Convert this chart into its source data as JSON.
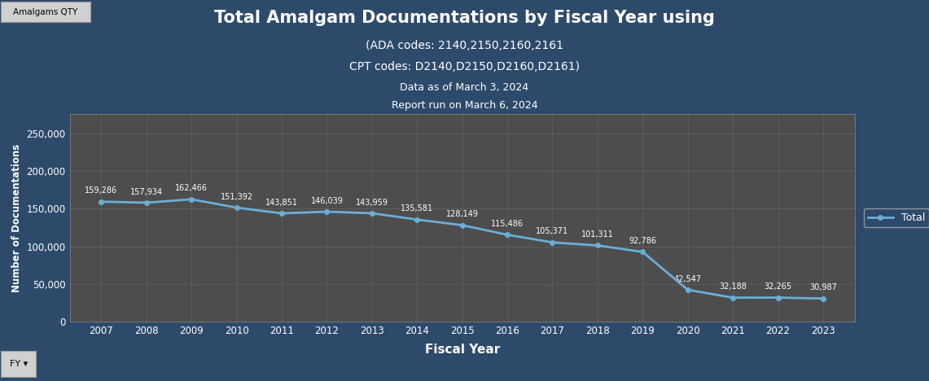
{
  "title_line1": "Total Amalgam Documentations by Fiscal Year using",
  "title_line2": "(ADA codes: 2140,2150,2160,2161",
  "title_line3": "CPT codes: D2140,D2150,D2160,D2161)",
  "title_line4": "Data as of March 3, 2024",
  "title_line5": "Report run on March 6, 2024",
  "xlabel": "Fiscal Year",
  "ylabel": "Number of Documentations",
  "years": [
    2007,
    2008,
    2009,
    2010,
    2011,
    2012,
    2013,
    2014,
    2015,
    2016,
    2017,
    2018,
    2019,
    2020,
    2021,
    2022,
    2023
  ],
  "values": [
    159286,
    157934,
    162466,
    151392,
    143851,
    146039,
    143959,
    135581,
    128149,
    115486,
    105371,
    101311,
    92786,
    42547,
    32188,
    32265,
    30987
  ],
  "line_color": "#6baed6",
  "marker_style": "o",
  "marker_size": 4,
  "line_width": 2.0,
  "background_color": "#2e4a6b",
  "plot_bg_color": "#4d4d4d",
  "grid_color": "#606060",
  "text_color": "#ffffff",
  "label_color": "#ffffff",
  "tick_color": "#ffffff",
  "ylim": [
    0,
    275000
  ],
  "yticks": [
    0,
    50000,
    100000,
    150000,
    200000,
    250000
  ],
  "legend_label": "Total",
  "tab_label": "Amalgams QTY",
  "tab_bg": "#d0d0d0",
  "tab_text": "#000000",
  "fy_tab_label": "FY",
  "annotation_fontsize": 7.0,
  "title1_fontsize": 15,
  "title_sub_fontsize": 10,
  "title_small_fontsize": 9
}
